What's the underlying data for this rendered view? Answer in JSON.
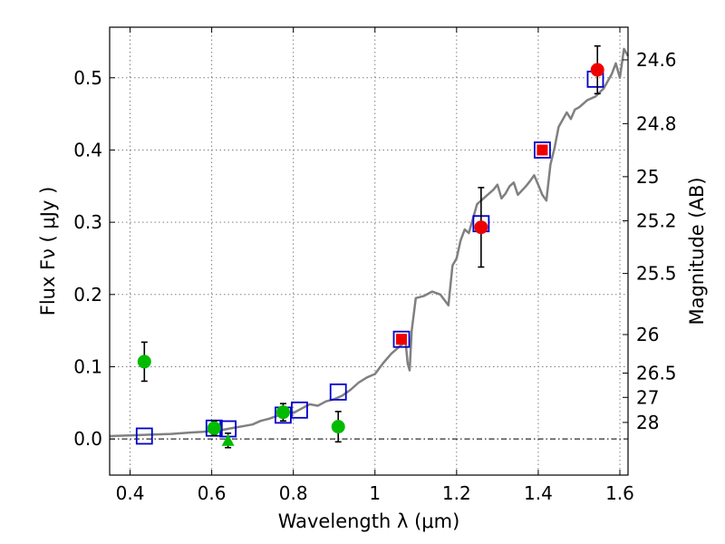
{
  "chart_data": {
    "type": "scatter",
    "xlabel": "Wavelength  λ (μm)",
    "ylabel": "Flux  Fν  ( μJy )",
    "ylabel_right": "Magnitude (AB)",
    "xlim": [
      0.35,
      1.62
    ],
    "ylim": [
      -0.05,
      0.57
    ],
    "x_ticks": [
      0.4,
      0.6,
      0.8,
      1.0,
      1.2,
      1.4,
      1.6
    ],
    "x_tick_labels": [
      "0.4",
      "0.6",
      "0.8",
      "1",
      "1.2",
      "1.4",
      "1.6"
    ],
    "y_ticks": [
      0.0,
      0.1,
      0.2,
      0.3,
      0.4,
      0.5
    ],
    "y_tick_labels": [
      "0.0",
      "0.1",
      "0.2",
      "0.3",
      "0.4",
      "0.5"
    ],
    "mag_ticks": [
      24.6,
      24.8,
      25,
      25.2,
      25.5,
      26,
      26.5,
      27,
      28
    ],
    "mag_tick_labels": [
      "24.6",
      "24.8",
      "25",
      "25.2",
      "25.5",
      "26",
      "26.5",
      "27",
      "28"
    ],
    "grid": true,
    "zero_line": true,
    "colors": {
      "template": "#808080",
      "model": "#0000cc",
      "green": "#00bb00",
      "red": "#ee0000",
      "errorbar": "#000000"
    },
    "series": [
      {
        "style": "line",
        "x": [
          0.35,
          0.4,
          0.45,
          0.5,
          0.55,
          0.58,
          0.6,
          0.62,
          0.64,
          0.66,
          0.68,
          0.7,
          0.72,
          0.74,
          0.76,
          0.78,
          0.8,
          0.82,
          0.84,
          0.86,
          0.88,
          0.9,
          0.92,
          0.94,
          0.96,
          0.98,
          1.0,
          1.02,
          1.04,
          1.06,
          1.075,
          1.08,
          1.085,
          1.09,
          1.1,
          1.12,
          1.14,
          1.16,
          1.18,
          1.19,
          1.2,
          1.21,
          1.22,
          1.23,
          1.24,
          1.25,
          1.27,
          1.29,
          1.3,
          1.31,
          1.32,
          1.33,
          1.34,
          1.35,
          1.36,
          1.37,
          1.38,
          1.39,
          1.4,
          1.41,
          1.42,
          1.43,
          1.44,
          1.45,
          1.46,
          1.47,
          1.48,
          1.49,
          1.5,
          1.52,
          1.54,
          1.56,
          1.58,
          1.59,
          1.6,
          1.61,
          1.62
        ],
        "y": [
          0.004,
          0.005,
          0.006,
          0.007,
          0.009,
          0.01,
          0.011,
          0.012,
          0.014,
          0.016,
          0.018,
          0.02,
          0.025,
          0.028,
          0.032,
          0.038,
          0.036,
          0.042,
          0.048,
          0.046,
          0.052,
          0.055,
          0.06,
          0.068,
          0.078,
          0.085,
          0.09,
          0.105,
          0.118,
          0.128,
          0.135,
          0.105,
          0.095,
          0.15,
          0.195,
          0.198,
          0.204,
          0.2,
          0.185,
          0.24,
          0.25,
          0.275,
          0.29,
          0.285,
          0.305,
          0.325,
          0.335,
          0.345,
          0.352,
          0.333,
          0.34,
          0.35,
          0.355,
          0.338,
          0.344,
          0.35,
          0.357,
          0.365,
          0.352,
          0.338,
          0.33,
          0.38,
          0.403,
          0.432,
          0.442,
          0.452,
          0.443,
          0.456,
          0.459,
          0.469,
          0.474,
          0.485,
          0.505,
          0.52,
          0.5,
          0.54,
          0.53
        ]
      },
      {
        "style": "open-square",
        "x": [
          0.435,
          0.606,
          0.64,
          0.775,
          0.815,
          0.91,
          1.065,
          1.26,
          1.41,
          1.54
        ],
        "y": [
          0.004,
          0.015,
          0.014,
          0.033,
          0.04,
          0.065,
          0.138,
          0.298,
          0.4,
          0.498
        ]
      },
      {
        "style": "filled-circle",
        "x": [
          0.435,
          0.606,
          0.775,
          0.91
        ],
        "y": [
          0.107,
          0.015,
          0.037,
          0.017
        ],
        "yerr": [
          0.027,
          0.01,
          0.012,
          0.021
        ]
      },
      {
        "style": "filled-triangle",
        "x": [
          0.64
        ],
        "y": [
          -0.002
        ],
        "yerr": [
          0.01
        ]
      },
      {
        "style": "filled-circle",
        "x": [
          1.26,
          1.545
        ],
        "y": [
          0.293,
          0.511
        ],
        "yerr": [
          0.055,
          0.033
        ]
      },
      {
        "style": "filled-square",
        "x": [
          1.065,
          1.41
        ],
        "y": [
          0.138,
          0.4
        ]
      }
    ]
  }
}
